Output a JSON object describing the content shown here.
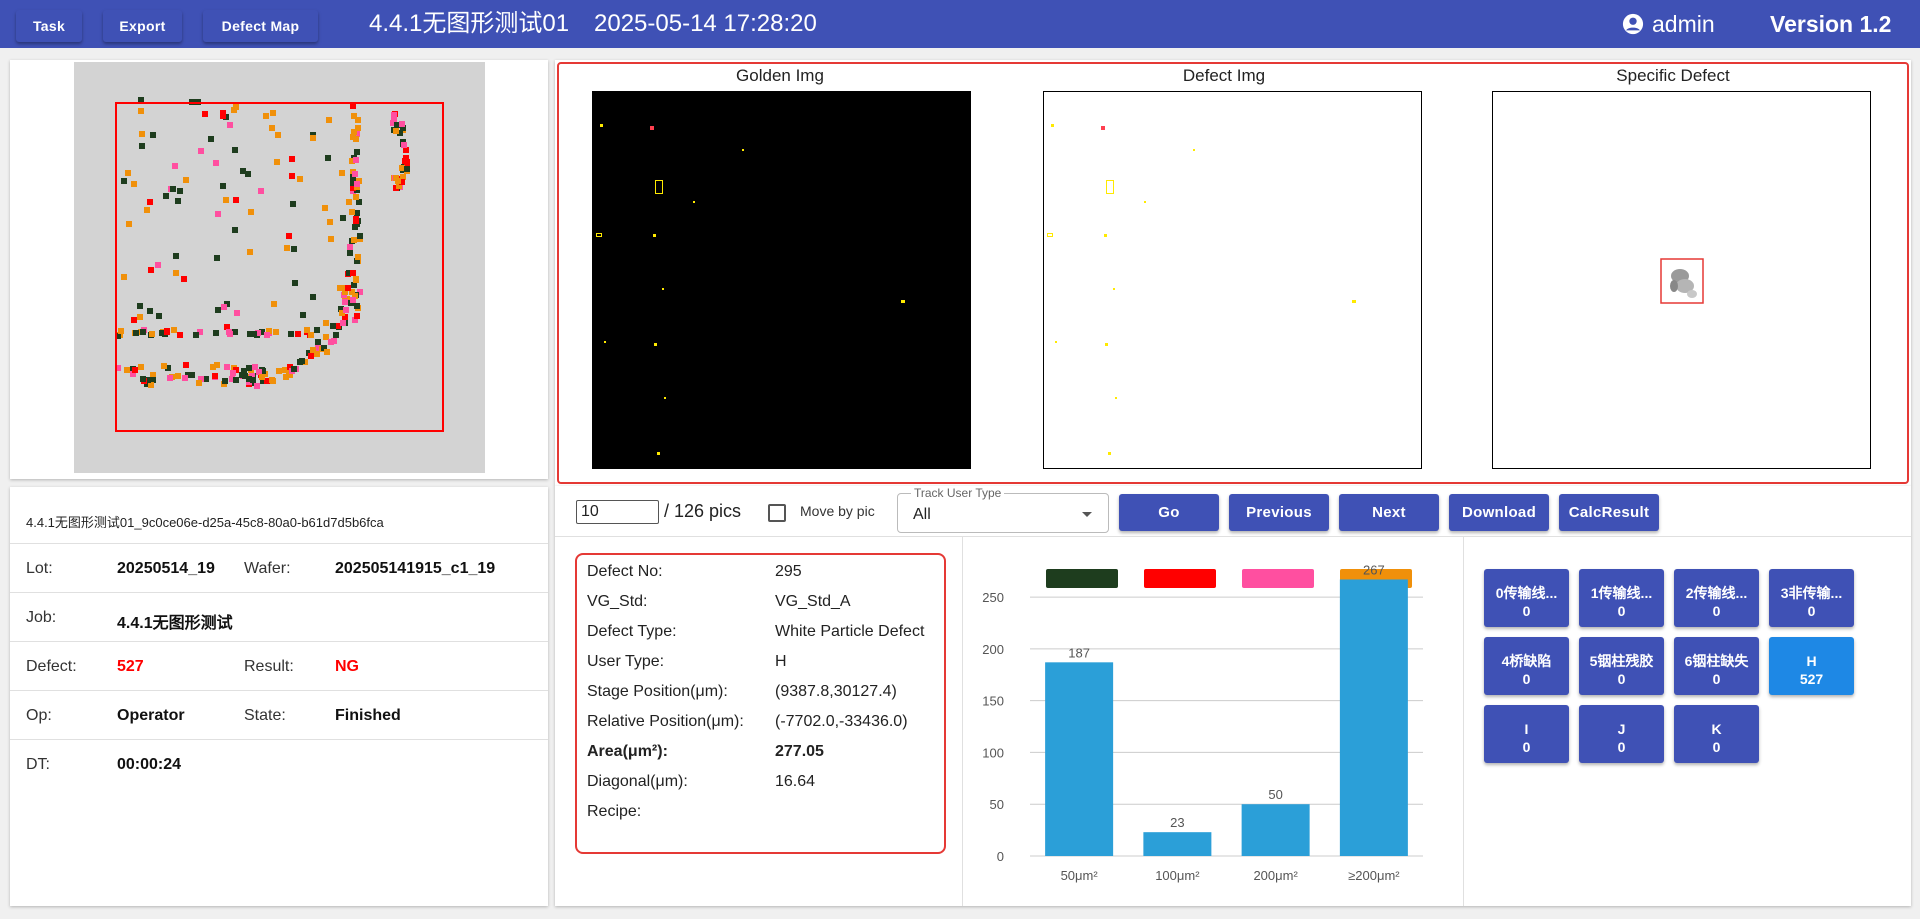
{
  "header": {
    "buttons": [
      "Task",
      "Export",
      "Defect Map"
    ],
    "title": "4.4.1无图形测试01",
    "datetime": "2025-05-14 17:28:20",
    "user": "admin",
    "version": "Version 1.2"
  },
  "info": {
    "title": "4.4.1无图形测试01_9c0ce06e-d25a-45c8-80a0-b61d7d5b6fca",
    "lot_label": "Lot:",
    "lot": "20250514_19",
    "wafer_label": "Wafer:",
    "wafer": "202505141915_c1_19",
    "job_label": "Job:",
    "job": "4.4.1无图形测试",
    "defect_label": "Defect:",
    "defect": "527",
    "result_label": "Result:",
    "result": "NG",
    "op_label": "Op:",
    "op": "Operator",
    "state_label": "State:",
    "state": "Finished",
    "dt_label": "DT:",
    "dt": "00:00:24"
  },
  "images": {
    "golden": "Golden Img",
    "defect": "Defect Img",
    "specific": "Specific Defect"
  },
  "controls": {
    "pic_index": "10",
    "pics_total": "/ 126 pics",
    "move_by_pic": "Move by pic",
    "track_label": "Track User Type",
    "track_value": "All",
    "buttons": [
      "Go",
      "Previous",
      "Next",
      "Download",
      "CalcResult"
    ]
  },
  "defect_detail": {
    "rows": [
      {
        "label": "Defect No:",
        "value": "295"
      },
      {
        "label": "VG_Std:",
        "value": "VG_Std_A"
      },
      {
        "label": "Defect Type:",
        "value": "White Particle Defect"
      },
      {
        "label": "User Type:",
        "value": "H"
      },
      {
        "label": "Stage Position(μm):",
        "value": "(9387.8,30127.4)"
      },
      {
        "label": "Relative Position(μm):",
        "value": "(-7702.0,-33436.0)"
      },
      {
        "label": "Area(μm²):",
        "value": "277.05"
      },
      {
        "label": "Diagonal(μm):",
        "value": "16.64"
      },
      {
        "label": "Recipe:",
        "value": ""
      }
    ]
  },
  "chart_data": {
    "type": "bar",
    "categories": [
      "50μm²",
      "100μm²",
      "200μm²",
      "≥200μm²"
    ],
    "values": [
      187,
      23,
      50,
      267
    ],
    "ylim": [
      0,
      280
    ],
    "yticks": [
      0,
      50,
      100,
      150,
      200,
      250
    ],
    "bar_color": "#2b9fd8",
    "legend_colors": [
      "#1e3d1e",
      "#ff0000",
      "#ff4fa0",
      "#f0900a"
    ]
  },
  "classes": [
    {
      "name": "0传输线...",
      "count": "0"
    },
    {
      "name": "1传输线...",
      "count": "0"
    },
    {
      "name": "2传输线...",
      "count": "0"
    },
    {
      "name": "3非传输...",
      "count": "0"
    },
    {
      "name": "4桥缺陷",
      "count": "0"
    },
    {
      "name": "5铟柱残胶",
      "count": "0"
    },
    {
      "name": "6铟柱缺失",
      "count": "0"
    },
    {
      "name": "H",
      "count": "527",
      "active": true
    },
    {
      "name": "I",
      "count": "0"
    },
    {
      "name": "J",
      "count": "0"
    },
    {
      "name": "K",
      "count": "0"
    }
  ]
}
